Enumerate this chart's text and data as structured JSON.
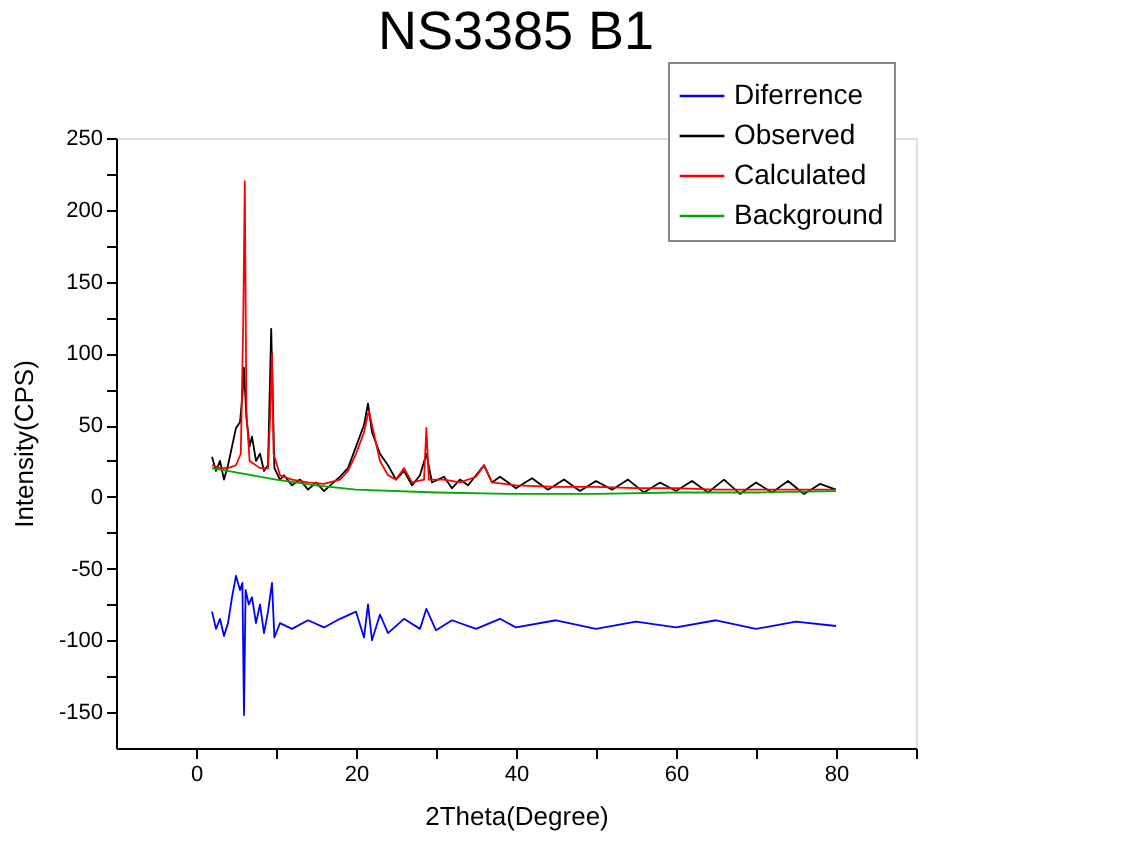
{
  "chart_data": {
    "type": "line",
    "title": "NS3385 B1",
    "xlabel": "2Theta(Degree)",
    "ylabel": "Intensity(CPS)",
    "xlim": [
      -10,
      90
    ],
    "ylim": [
      -175,
      250
    ],
    "xticks": [
      0,
      {
        "value": 10,
        "label": null
      },
      20,
      {
        "value": 30,
        "label": null
      },
      40,
      {
        "value": 50,
        "label": null
      },
      60,
      {
        "value": 70,
        "label": null
      },
      80,
      {
        "value": 90,
        "label": null
      }
    ],
    "yticks": [
      -150,
      {
        "value": -125,
        "label": null
      },
      -100,
      {
        "value": -75,
        "label": null
      },
      -50,
      {
        "value": -25,
        "label": null
      },
      0,
      {
        "value": 25,
        "label": null
      },
      50,
      {
        "value": 75,
        "label": null
      },
      100,
      {
        "value": 125,
        "label": null
      },
      150,
      {
        "value": 175,
        "label": null
      },
      200,
      {
        "value": 225,
        "label": null
      },
      250
    ],
    "grid": false,
    "legend": "top right",
    "marker": "none",
    "line_style": "solid",
    "series": [
      {
        "name": "Diferrence",
        "color": "#0000ff",
        "x": [
          2,
          2.5,
          3,
          3.5,
          4,
          4.5,
          5,
          5.5,
          5.8,
          6,
          6.2,
          6.6,
          7,
          7.5,
          8,
          8.5,
          9,
          9.5,
          9.8,
          10.5,
          12,
          14,
          16,
          18,
          20,
          21,
          21.5,
          22,
          23,
          24,
          26,
          28,
          28.8,
          30,
          32,
          35,
          38,
          40,
          45,
          50,
          55,
          60,
          65,
          70,
          75,
          80
        ],
        "values": [
          -80,
          -92,
          -85,
          -97,
          -88,
          -70,
          -55,
          -65,
          -60,
          -152,
          -65,
          -75,
          -70,
          -88,
          -75,
          -95,
          -80,
          -60,
          -98,
          -88,
          -92,
          -86,
          -91,
          -85,
          -80,
          -98,
          -75,
          -100,
          -82,
          -95,
          -85,
          -92,
          -78,
          -93,
          -86,
          -92,
          -85,
          -91,
          -86,
          -92,
          -87,
          -91,
          -86,
          -92,
          -87,
          -90
        ]
      },
      {
        "name": "Observed",
        "color": "#000000",
        "x": [
          2,
          2.5,
          3,
          3.5,
          4,
          4.5,
          5,
          5.5,
          5.8,
          6,
          6.3,
          6.7,
          7,
          7.5,
          8,
          8.5,
          9,
          9.4,
          9.8,
          10.5,
          11,
          12,
          13,
          14,
          15,
          16,
          17,
          18,
          19,
          20,
          21,
          21.5,
          22,
          23,
          24,
          25,
          26,
          27,
          28,
          28.8,
          29.5,
          31,
          32,
          33,
          34,
          35,
          36,
          37,
          38,
          40,
          42,
          44,
          46,
          48,
          50,
          52,
          54,
          56,
          58,
          60,
          62,
          64,
          66,
          68,
          70,
          72,
          74,
          76,
          78,
          80
        ],
        "values": [
          28,
          18,
          25,
          12,
          22,
          35,
          48,
          52,
          70,
          90,
          55,
          35,
          42,
          25,
          30,
          18,
          22,
          117,
          20,
          12,
          15,
          8,
          12,
          5,
          10,
          4,
          9,
          14,
          20,
          35,
          50,
          65,
          45,
          30,
          22,
          12,
          18,
          8,
          15,
          30,
          10,
          14,
          6,
          12,
          8,
          15,
          22,
          10,
          14,
          6,
          13,
          5,
          12,
          4,
          11,
          5,
          12,
          3,
          10,
          4,
          11,
          3,
          12,
          2,
          10,
          3,
          11,
          2,
          9,
          5
        ]
      },
      {
        "name": "Calculated",
        "color": "#ff0000",
        "x": [
          2,
          3,
          4,
          5,
          5.6,
          5.9,
          6.1,
          6.3,
          6.7,
          8,
          9,
          9.3,
          9.5,
          9.7,
          10.5,
          12,
          14,
          16,
          18,
          19,
          20,
          21,
          21.6,
          22.2,
          23,
          24,
          25,
          26,
          27,
          28.5,
          28.8,
          29.1,
          31,
          33,
          35,
          36,
          37,
          40,
          45,
          50,
          55,
          60,
          65,
          70,
          75,
          80
        ],
        "values": [
          22,
          20,
          20,
          22,
          30,
          120,
          220,
          60,
          25,
          20,
          20,
          60,
          100,
          30,
          15,
          12,
          10,
          9,
          12,
          18,
          30,
          45,
          60,
          45,
          25,
          15,
          12,
          20,
          10,
          12,
          48,
          12,
          12,
          10,
          14,
          22,
          10,
          8,
          7,
          7,
          6,
          6,
          5,
          5,
          5,
          5
        ]
      },
      {
        "name": "Background",
        "color": "#00aa00",
        "x": [
          2,
          5,
          10,
          15,
          20,
          30,
          40,
          50,
          60,
          70,
          80
        ],
        "values": [
          20,
          17,
          12,
          8,
          5,
          3,
          2,
          2,
          3,
          3,
          4
        ]
      }
    ]
  }
}
